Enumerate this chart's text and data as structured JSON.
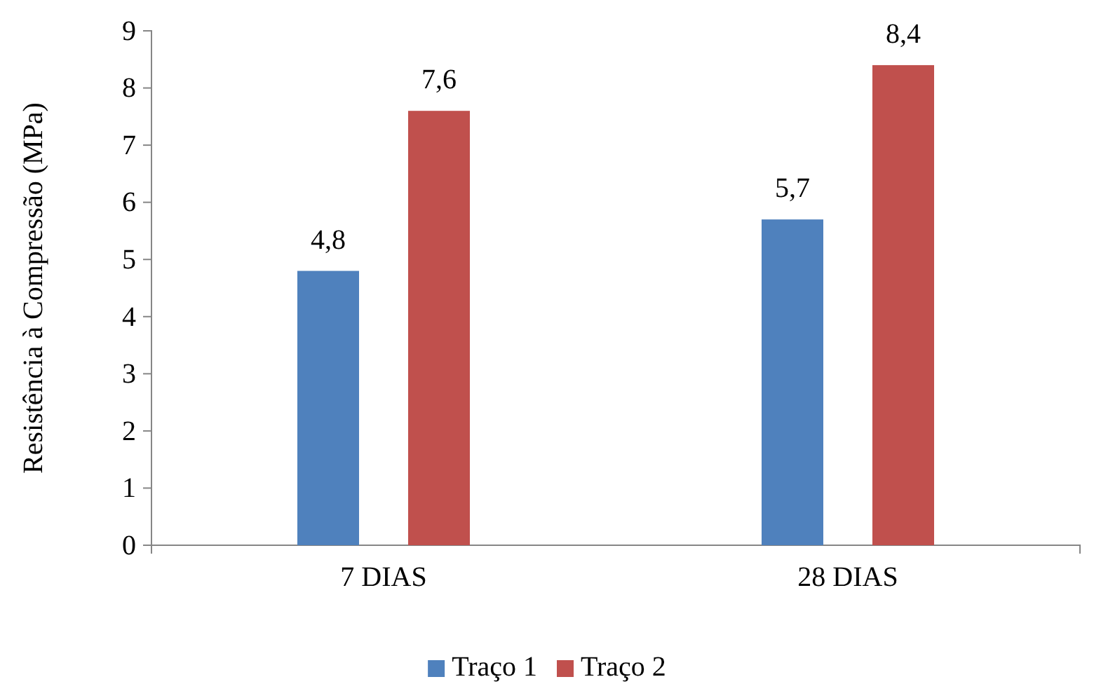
{
  "chart_data": {
    "type": "bar",
    "ylabel": "Resistência à Compressão (MPa)",
    "categories": [
      "7 DIAS",
      "28 DIAS"
    ],
    "series": [
      {
        "name": "Traço 1",
        "color": "#4f81bd",
        "values": [
          4.8,
          5.7
        ],
        "value_labels": [
          "4,8",
          "5,7"
        ]
      },
      {
        "name": "Traço 2",
        "color": "#c0504d",
        "values": [
          7.6,
          8.4
        ],
        "value_labels": [
          "7,6",
          "8,4"
        ]
      }
    ],
    "ylim": [
      0,
      9
    ],
    "yticks": [
      0,
      1,
      2,
      3,
      4,
      5,
      6,
      7,
      8,
      9
    ],
    "grid": false,
    "legend": "bottom"
  }
}
